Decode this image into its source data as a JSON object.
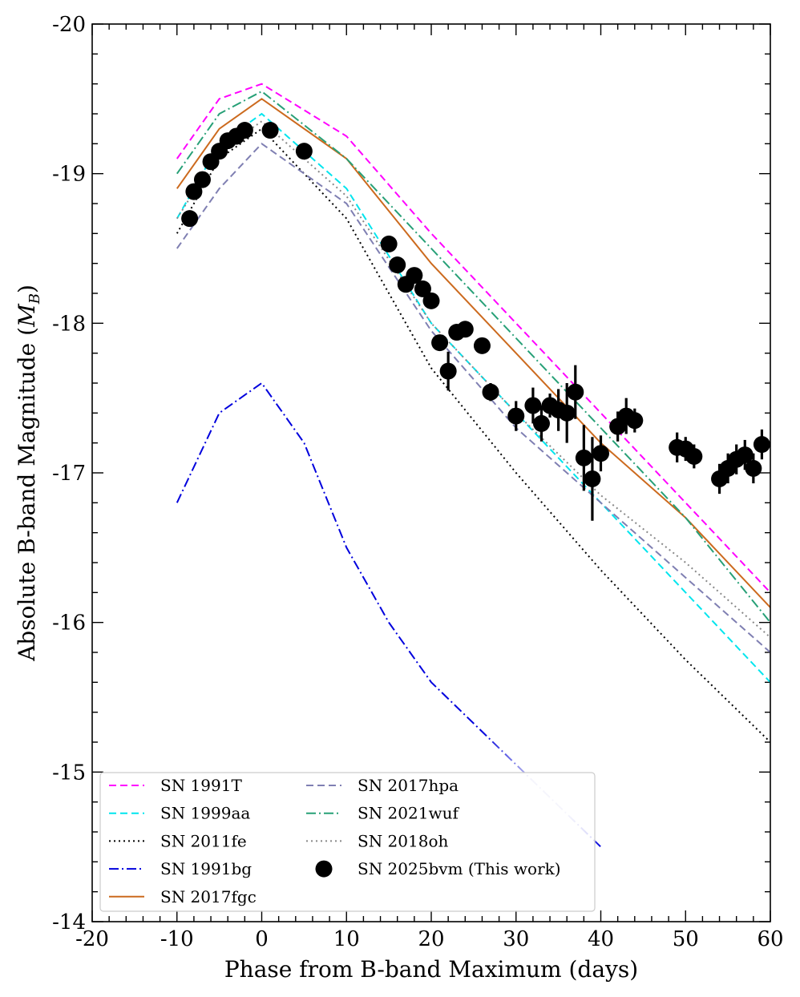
{
  "chart_data": {
    "type": "line",
    "xlabel": "Phase from B-band Maximum (days)",
    "ylabel": "Absolute B-band Magnitude",
    "ylabel_symbol": "M",
    "ylabel_subscript": "B",
    "xlim": [
      -20,
      60
    ],
    "ylim": [
      -14,
      -20
    ],
    "y_inverted": true,
    "x_ticks": [
      -20,
      -10,
      0,
      10,
      20,
      30,
      40,
      50,
      60
    ],
    "x_tick_labels": [
      "-20",
      "-10",
      "0",
      "10",
      "20",
      "30",
      "40",
      "50",
      "60"
    ],
    "y_ticks": [
      -20,
      -19,
      -18,
      -17,
      -16,
      -15,
      -14
    ],
    "y_tick_labels": [
      "-20",
      "-19",
      "-18",
      "-17",
      "-16",
      "-15",
      "-14"
    ],
    "grid": false,
    "legend_position": "lower-left",
    "series": [
      {
        "name": "SN 1991T",
        "color": "#ff00ff",
        "style": "dashed",
        "x": [
          -10,
          -5,
          0,
          10,
          20,
          30,
          40,
          50,
          60
        ],
        "y": [
          -19.1,
          -19.5,
          -19.6,
          -19.25,
          -18.6,
          -18.0,
          -17.4,
          -16.8,
          -16.2
        ]
      },
      {
        "name": "SN 1999aa",
        "color": "#00e5ee",
        "style": "dashed",
        "x": [
          -10,
          -5,
          0,
          10,
          20,
          30,
          40,
          50,
          60
        ],
        "y": [
          -18.7,
          -19.2,
          -19.4,
          -18.9,
          -18.0,
          -17.4,
          -16.8,
          -16.2,
          -15.6
        ]
      },
      {
        "name": "SN 2011fe",
        "color": "#000000",
        "style": "dotted",
        "x": [
          -10,
          -5,
          0,
          10,
          20,
          30,
          40,
          50,
          60
        ],
        "y": [
          -18.6,
          -19.1,
          -19.3,
          -18.7,
          -17.7,
          -17.0,
          -16.35,
          -15.75,
          -15.2
        ]
      },
      {
        "name": "SN 1991bg",
        "color": "#0000dd",
        "fade_color": "#c8c8ee",
        "style": "dashdot",
        "x": [
          -10,
          -5,
          0,
          5,
          10,
          15,
          20,
          30,
          40
        ],
        "y": [
          -16.8,
          -17.4,
          -17.6,
          -17.2,
          -16.5,
          -16.0,
          -15.6,
          -15.05,
          -14.5
        ]
      },
      {
        "name": "SN 2017fgc",
        "color": "#cc6a1e",
        "style": "solid",
        "x": [
          -10,
          -5,
          0,
          10,
          20,
          30,
          40,
          50,
          60
        ],
        "y": [
          -18.9,
          -19.3,
          -19.5,
          -19.1,
          -18.4,
          -17.8,
          -17.2,
          -16.7,
          -16.1
        ]
      },
      {
        "name": "SN 2017hpa",
        "color": "#7f7fb2",
        "style": "dashed",
        "x": [
          -10,
          -5,
          0,
          10,
          20,
          30,
          40,
          50,
          60
        ],
        "y": [
          -18.5,
          -18.9,
          -19.2,
          -18.8,
          -17.95,
          -17.3,
          -16.8,
          -16.3,
          -15.8
        ]
      },
      {
        "name": "SN 2021wuf",
        "color": "#27a077",
        "style": "dashdot",
        "x": [
          -10,
          -5,
          0,
          10,
          20,
          30,
          40,
          50,
          60
        ],
        "y": [
          -19.0,
          -19.4,
          -19.55,
          -19.1,
          -18.5,
          -17.9,
          -17.3,
          -16.7,
          -16.0
        ]
      },
      {
        "name": "SN 2018oh",
        "color": "#888888",
        "style": "dotted",
        "x": [
          -10,
          -5,
          0,
          10,
          20,
          30,
          40,
          50,
          60
        ],
        "y": [
          -18.7,
          -19.15,
          -19.35,
          -18.85,
          -18.0,
          -17.4,
          -16.85,
          -16.4,
          -15.9
        ]
      }
    ],
    "observations": {
      "name": "SN 2025bvm (This work)",
      "color": "#000000",
      "x": [
        -8.5,
        -8,
        -7,
        -6,
        -5,
        -4,
        -3,
        -2,
        1,
        5,
        15,
        16,
        17,
        18,
        19,
        20,
        21,
        22,
        23,
        24,
        26,
        27,
        30,
        32,
        33,
        34,
        35,
        36,
        37,
        38,
        39,
        40,
        42,
        43,
        44,
        49,
        50,
        51,
        54,
        55,
        56,
        57,
        58,
        59
      ],
      "y": [
        -18.7,
        -18.88,
        -18.96,
        -19.08,
        -19.15,
        -19.22,
        -19.25,
        -19.29,
        -19.29,
        -19.15,
        -18.53,
        -18.39,
        -18.26,
        -18.32,
        -18.23,
        -18.15,
        -17.87,
        -17.68,
        -17.94,
        -17.96,
        -17.85,
        -17.54,
        -17.38,
        -17.45,
        -17.33,
        -17.45,
        -17.42,
        -17.4,
        -17.54,
        -17.1,
        -16.96,
        -17.13,
        -17.31,
        -17.38,
        -17.35,
        -17.17,
        -17.16,
        -17.11,
        -16.96,
        -17.03,
        -17.09,
        -17.12,
        -17.03,
        -17.19
      ],
      "err": [
        0.02,
        0.02,
        0.02,
        0.02,
        0.02,
        0.02,
        0.02,
        0.02,
        0.03,
        0.03,
        0.03,
        0.03,
        0.03,
        0.03,
        0.03,
        0.03,
        0.05,
        0.13,
        0.05,
        0.04,
        0.04,
        0.06,
        0.1,
        0.12,
        0.12,
        0.08,
        0.14,
        0.2,
        0.18,
        0.22,
        0.28,
        0.12,
        0.1,
        0.12,
        0.08,
        0.1,
        0.08,
        0.08,
        0.1,
        0.1,
        0.1,
        0.1,
        0.1,
        0.1
      ]
    }
  }
}
